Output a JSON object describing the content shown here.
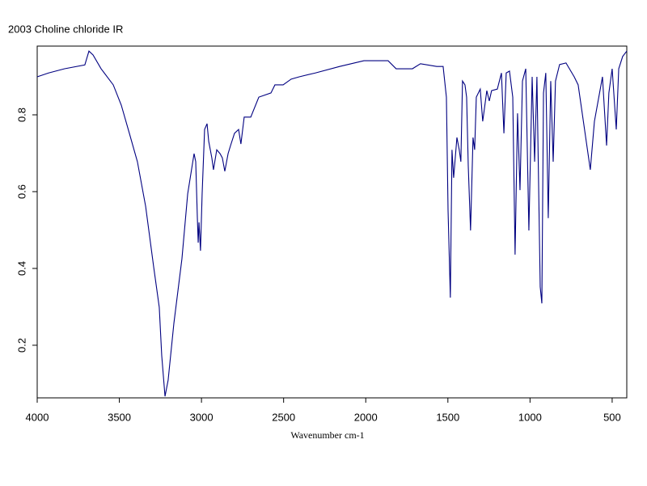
{
  "chart_data": {
    "type": "line",
    "title": "2003  Choline chloride  IR",
    "x_label": "Wavenumber cm-1",
    "xlim": [
      4000,
      411
    ],
    "ylim": [
      0.063,
      0.979
    ],
    "xticks": [
      4000,
      3500,
      3000,
      2500,
      2000,
      1500,
      1000,
      500
    ],
    "yticks": [
      0.2,
      0.4,
      0.6,
      0.8
    ],
    "grid": false,
    "series": [
      {
        "color": "#000080",
        "x": [
          4000,
          3931,
          3833,
          3710,
          3685,
          3660,
          3611,
          3537,
          3488,
          3439,
          3390,
          3340,
          3291,
          3257,
          3242,
          3222,
          3203,
          3168,
          3119,
          3084,
          3045,
          3035,
          3025,
          3020,
          3015,
          3006,
          2996,
          2981,
          2966,
          2956,
          2937,
          2927,
          2907,
          2887,
          2873,
          2858,
          2838,
          2823,
          2799,
          2774,
          2760,
          2740,
          2700,
          2651,
          2577,
          2553,
          2503,
          2454,
          2405,
          2307,
          2159,
          2011,
          1864,
          1815,
          1716,
          1667,
          1568,
          1529,
          1509,
          1499,
          1485,
          1475,
          1465,
          1445,
          1431,
          1421,
          1411,
          1396,
          1386,
          1376,
          1362,
          1347,
          1337,
          1327,
          1303,
          1288,
          1263,
          1248,
          1234,
          1199,
          1174,
          1159,
          1145,
          1125,
          1105,
          1091,
          1076,
          1061,
          1046,
          1026,
          1007,
          987,
          972,
          958,
          938,
          928,
          918,
          904,
          889,
          874,
          859,
          845,
          820,
          781,
          731,
          707,
          633,
          608,
          559,
          534,
          520,
          500,
          475,
          460,
          436,
          411
        ],
        "values": [
          0.899,
          0.909,
          0.92,
          0.93,
          0.966,
          0.956,
          0.92,
          0.878,
          0.825,
          0.752,
          0.678,
          0.562,
          0.404,
          0.299,
          0.173,
          0.067,
          0.109,
          0.257,
          0.425,
          0.594,
          0.699,
          0.678,
          0.531,
          0.467,
          0.52,
          0.446,
          0.594,
          0.762,
          0.777,
          0.731,
          0.688,
          0.657,
          0.709,
          0.699,
          0.688,
          0.653,
          0.699,
          0.72,
          0.752,
          0.762,
          0.724,
          0.794,
          0.794,
          0.846,
          0.857,
          0.878,
          0.878,
          0.893,
          0.899,
          0.909,
          0.926,
          0.941,
          0.941,
          0.92,
          0.92,
          0.933,
          0.926,
          0.926,
          0.846,
          0.552,
          0.324,
          0.709,
          0.636,
          0.741,
          0.709,
          0.678,
          0.888,
          0.878,
          0.846,
          0.667,
          0.499,
          0.741,
          0.709,
          0.846,
          0.867,
          0.783,
          0.863,
          0.836,
          0.863,
          0.867,
          0.909,
          0.752,
          0.909,
          0.914,
          0.846,
          0.436,
          0.804,
          0.604,
          0.888,
          0.92,
          0.499,
          0.899,
          0.678,
          0.899,
          0.352,
          0.309,
          0.857,
          0.909,
          0.531,
          0.888,
          0.678,
          0.888,
          0.931,
          0.935,
          0.899,
          0.878,
          0.657,
          0.783,
          0.899,
          0.72,
          0.857,
          0.92,
          0.762,
          0.92,
          0.952,
          0.966
        ]
      }
    ]
  }
}
